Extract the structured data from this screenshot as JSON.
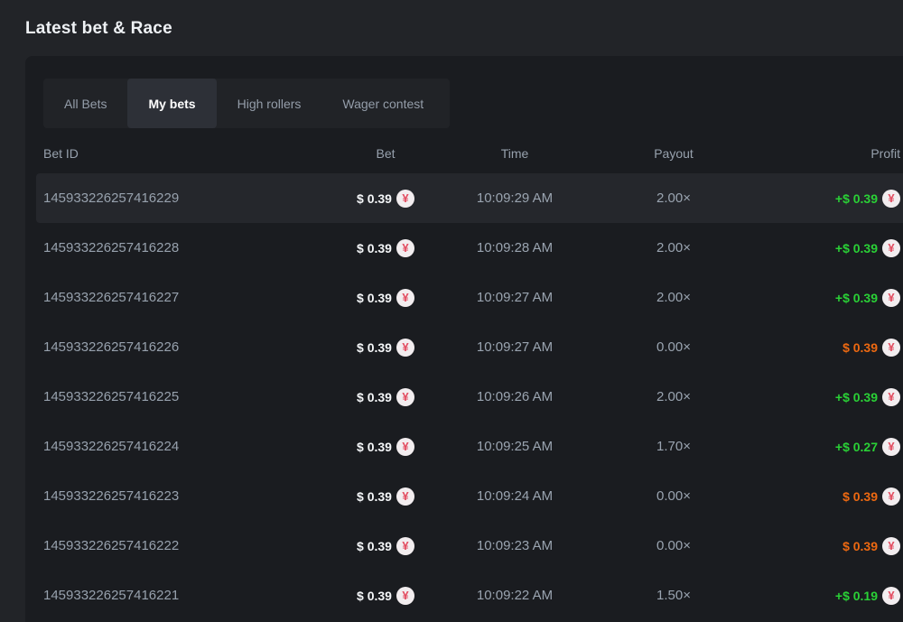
{
  "section": {
    "title": "Latest bet & Race"
  },
  "tabs": [
    {
      "label": "All Bets",
      "active": false
    },
    {
      "label": "My bets",
      "active": true
    },
    {
      "label": "High rollers",
      "active": false
    },
    {
      "label": "Wager contest",
      "active": false
    }
  ],
  "table": {
    "columns": [
      "Bet ID",
      "Bet",
      "Time",
      "Payout",
      "Profit"
    ],
    "currency_icon": "yen-coin",
    "rows": [
      {
        "bet_id": "145933226257416229",
        "bet": "$ 0.39",
        "time": "10:09:29 AM",
        "payout": "2.00×",
        "profit": "+$ 0.39",
        "profit_state": "win",
        "highlighted": true
      },
      {
        "bet_id": "145933226257416228",
        "bet": "$ 0.39",
        "time": "10:09:28 AM",
        "payout": "2.00×",
        "profit": "+$ 0.39",
        "profit_state": "win",
        "highlighted": false
      },
      {
        "bet_id": "145933226257416227",
        "bet": "$ 0.39",
        "time": "10:09:27 AM",
        "payout": "2.00×",
        "profit": "+$ 0.39",
        "profit_state": "win",
        "highlighted": false
      },
      {
        "bet_id": "145933226257416226",
        "bet": "$ 0.39",
        "time": "10:09:27 AM",
        "payout": "0.00×",
        "profit": "$ 0.39",
        "profit_state": "loss",
        "highlighted": false
      },
      {
        "bet_id": "145933226257416225",
        "bet": "$ 0.39",
        "time": "10:09:26 AM",
        "payout": "2.00×",
        "profit": "+$ 0.39",
        "profit_state": "win",
        "highlighted": false
      },
      {
        "bet_id": "145933226257416224",
        "bet": "$ 0.39",
        "time": "10:09:25 AM",
        "payout": "1.70×",
        "profit": "+$ 0.27",
        "profit_state": "win",
        "highlighted": false
      },
      {
        "bet_id": "145933226257416223",
        "bet": "$ 0.39",
        "time": "10:09:24 AM",
        "payout": "0.00×",
        "profit": "$ 0.39",
        "profit_state": "loss",
        "highlighted": false
      },
      {
        "bet_id": "145933226257416222",
        "bet": "$ 0.39",
        "time": "10:09:23 AM",
        "payout": "0.00×",
        "profit": "$ 0.39",
        "profit_state": "loss",
        "highlighted": false
      },
      {
        "bet_id": "145933226257416221",
        "bet": "$ 0.39",
        "time": "10:09:22 AM",
        "payout": "1.50×",
        "profit": "+$ 0.19",
        "profit_state": "win",
        "highlighted": false
      }
    ]
  },
  "colors": {
    "win": "#2ad136",
    "loss": "#ee6911",
    "coin_glyph": "#e34b5f",
    "coin_bg": "#f2edef",
    "panel_bg": "#1a1c20",
    "page_bg": "#222428"
  },
  "icons": {
    "currency": "¥"
  }
}
